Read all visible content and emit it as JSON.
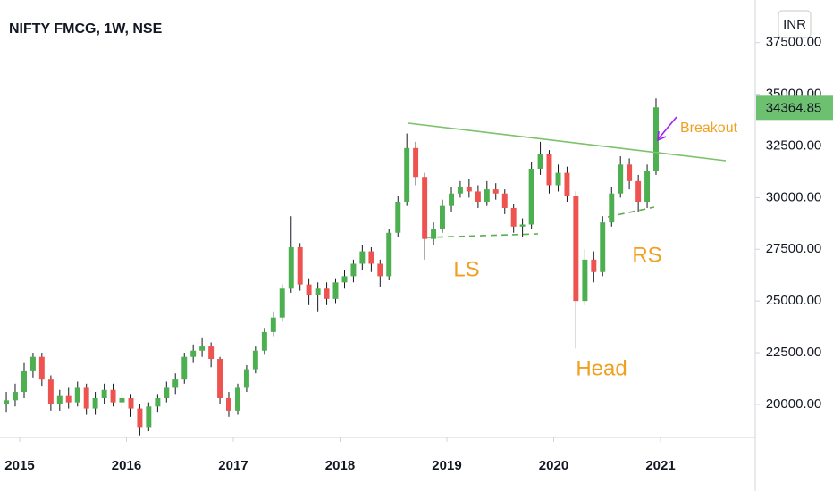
{
  "chart_data": {
    "type": "candlestick",
    "title": "NIFTY FMCG, 1W, NSE",
    "currency": "INR",
    "up_color": "#4caf50",
    "down_color": "#ef5350",
    "grid": false,
    "x": [
      2014.875,
      2014.958,
      2015.042,
      2015.125,
      2015.208,
      2015.292,
      2015.375,
      2015.458,
      2015.542,
      2015.625,
      2015.708,
      2015.792,
      2015.875,
      2015.958,
      2016.042,
      2016.125,
      2016.208,
      2016.292,
      2016.375,
      2016.458,
      2016.542,
      2016.625,
      2016.708,
      2016.792,
      2016.875,
      2016.958,
      2017.042,
      2017.125,
      2017.208,
      2017.292,
      2017.375,
      2017.458,
      2017.542,
      2017.625,
      2017.708,
      2017.792,
      2017.875,
      2017.958,
      2018.042,
      2018.125,
      2018.208,
      2018.292,
      2018.375,
      2018.458,
      2018.542,
      2018.625,
      2018.708,
      2018.792,
      2018.875,
      2018.958,
      2019.042,
      2019.125,
      2019.208,
      2019.292,
      2019.375,
      2019.458,
      2019.542,
      2019.625,
      2019.708,
      2019.792,
      2019.875,
      2019.958,
      2020.042,
      2020.125,
      2020.208,
      2020.292,
      2020.375,
      2020.458,
      2020.542,
      2020.625,
      2020.708,
      2020.792,
      2020.875,
      2020.958
    ],
    "open": [
      20000,
      20200,
      20600,
      21600,
      22300,
      21200,
      20000,
      20400,
      20100,
      20800,
      19800,
      20300,
      20700,
      20100,
      20300,
      19800,
      18900,
      19900,
      20300,
      20800,
      21200,
      22300,
      22600,
      22800,
      22200,
      20300,
      19700,
      20800,
      21700,
      22600,
      23500,
      24200,
      25600,
      27600,
      25800,
      25300,
      25600,
      25100,
      25900,
      26200,
      26800,
      27400,
      26800,
      26200,
      28300,
      29800,
      32400,
      31000,
      28000,
      28500,
      29600,
      30200,
      30500,
      30300,
      29800,
      30400,
      30200,
      29500,
      28600,
      28700,
      31400,
      32100,
      30600,
      31200,
      30100,
      25000,
      27000,
      26400,
      28800,
      30200,
      31600,
      30800,
      29800,
      31300
    ],
    "high": [
      20600,
      21000,
      22000,
      22500,
      22500,
      21400,
      20700,
      20800,
      21100,
      21000,
      20600,
      21000,
      21000,
      20600,
      20500,
      20000,
      20100,
      20500,
      21100,
      21500,
      22500,
      22900,
      23200,
      23000,
      22300,
      20600,
      21000,
      21900,
      22800,
      23700,
      24500,
      25800,
      29100,
      27800,
      26100,
      25900,
      25900,
      26100,
      26500,
      27000,
      27700,
      27600,
      27000,
      28500,
      30100,
      33100,
      32700,
      31200,
      28800,
      29900,
      30500,
      30800,
      30900,
      30600,
      30800,
      30700,
      30400,
      29700,
      29000,
      31700,
      32700,
      32300,
      31600,
      31500,
      30300,
      27500,
      27400,
      29100,
      30500,
      32000,
      31900,
      31100,
      31600,
      34800
    ],
    "low": [
      19600,
      19900,
      20300,
      21300,
      20900,
      19700,
      19700,
      19800,
      19900,
      19500,
      19500,
      20000,
      19900,
      19800,
      19400,
      18500,
      18700,
      19600,
      20100,
      20500,
      21000,
      22000,
      22300,
      21800,
      20000,
      19400,
      19500,
      20600,
      21500,
      22400,
      23300,
      24000,
      25400,
      25500,
      24800,
      24500,
      24800,
      24900,
      25600,
      25900,
      26500,
      26400,
      25700,
      26000,
      28100,
      29600,
      30600,
      27000,
      27700,
      28300,
      29300,
      30000,
      30000,
      29500,
      29600,
      29900,
      29200,
      28300,
      28100,
      28500,
      31100,
      30200,
      30300,
      29800,
      22700,
      24800,
      25900,
      26200,
      28600,
      30000,
      30400,
      29300,
      29500,
      31100
    ],
    "close": [
      20200,
      20600,
      21600,
      22300,
      21200,
      20000,
      20400,
      20100,
      20800,
      19800,
      20300,
      20700,
      20100,
      20300,
      19800,
      18900,
      19900,
      20300,
      20800,
      21200,
      22300,
      22600,
      22800,
      22200,
      20300,
      19700,
      20800,
      21700,
      22600,
      23500,
      24200,
      25600,
      27600,
      25800,
      25300,
      25600,
      25100,
      25900,
      26200,
      26800,
      27400,
      26800,
      26200,
      28300,
      29800,
      32400,
      31000,
      28000,
      28500,
      29600,
      30200,
      30500,
      30300,
      29800,
      30400,
      30200,
      29500,
      28600,
      28700,
      31400,
      32100,
      30600,
      31200,
      30100,
      25000,
      27000,
      26400,
      28800,
      30200,
      31600,
      30800,
      29800,
      31300,
      34364.85
    ],
    "xlim": [
      2014.816,
      2021.887
    ],
    "xticks": [
      2015,
      2016,
      2017,
      2018,
      2019,
      2020,
      2021
    ],
    "ylim": [
      18400,
      39560
    ],
    "yticks": [
      {
        "value": 20000,
        "label": "20000.00"
      },
      {
        "value": 22500,
        "label": "22500.00"
      },
      {
        "value": 25000,
        "label": "25000.00"
      },
      {
        "value": 27500,
        "label": "27500.00"
      },
      {
        "value": 30000,
        "label": "30000.00"
      },
      {
        "value": 32500,
        "label": "32500.00"
      },
      {
        "value": 35000,
        "label": "35000.00"
      },
      {
        "value": 37500,
        "label": "37500.00"
      }
    ],
    "annotations": [
      "LS",
      "Head",
      "RS",
      "Breakout"
    ]
  }
}
